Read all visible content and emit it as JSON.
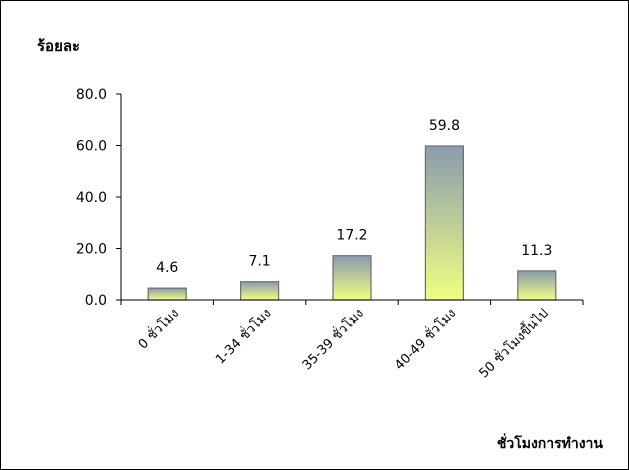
{
  "chart_data": {
    "type": "bar",
    "ylabel": "ร้อยละ",
    "xlabel": "ชั่วโมงการทำงาน",
    "categories": [
      "0 ชั่วโมง",
      "1-34 ชั่วโมง",
      "35-39 ชั่วโมง",
      "40-49 ชั่วโมง",
      "50 ชั่วโมงขึ้นไป"
    ],
    "values": [
      4.6,
      7.1,
      17.2,
      59.8,
      11.3
    ],
    "data_labels": [
      "4.6",
      "7.1",
      "17.2",
      "59.8",
      "11.3"
    ],
    "ylim": [
      0,
      80
    ],
    "yticks": [
      0,
      20,
      40,
      60,
      80
    ],
    "ytick_labels": [
      "0.0",
      "20.0",
      "40.0",
      "60.0",
      "80.0"
    ],
    "grid": false,
    "legend": "none",
    "colors": {
      "bar_top": "#8a9bb0",
      "bar_bottom": "#f0ff80",
      "bar_stroke": "#6e6e6e",
      "axis": "#000000"
    }
  }
}
